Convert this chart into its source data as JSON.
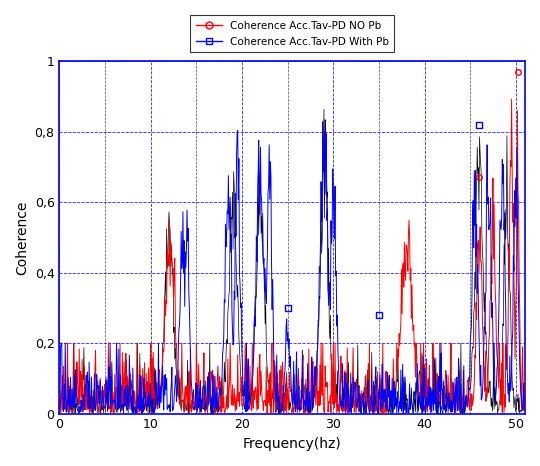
{
  "xlabel": "Frequency(hz)",
  "ylabel": "Coherence",
  "xlim": [
    0,
    51
  ],
  "ylim": [
    0,
    1.0
  ],
  "xticks": [
    0,
    10,
    20,
    30,
    40,
    50
  ],
  "yticks": [
    0,
    0.2,
    0.4,
    0.6,
    0.8,
    1
  ],
  "ytick_labels": [
    "0",
    "0,2",
    "0,4",
    "0,6",
    "0,8",
    "1"
  ],
  "legend1_label": "Coherence Acc.Tav-PD NO Pb",
  "legend2_label": "Coherence Acc.Tav-PD With Pb",
  "color_red": "#ff0000",
  "color_blue": "#0000ff",
  "color_black": "#000000",
  "grid_blue": "#0000ff",
  "grid_black": "#000000",
  "major_xticks": [
    0,
    10,
    20,
    30,
    40,
    50
  ],
  "minor_xticks": [
    5,
    15,
    25,
    35,
    45
  ],
  "seed_red": 101,
  "seed_blue": 202,
  "seed_black": 303,
  "n_points": 800
}
